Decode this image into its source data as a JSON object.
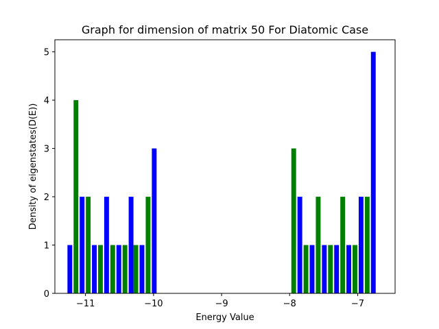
{
  "chart_data": {
    "type": "bar",
    "title": "Graph for dimension of matrix 50 For Diatomic Case",
    "xlabel": "Energy Value",
    "ylabel": "Density of eigenstates(D(E))",
    "xlim": [
      -11.45,
      -6.45
    ],
    "ylim": [
      0,
      5.25
    ],
    "xticks": [
      -11,
      -10,
      -9,
      -8,
      -7
    ],
    "xtick_labels": [
      "−11",
      "−10",
      "−9",
      "−8",
      "−7"
    ],
    "yticks": [
      0,
      1,
      2,
      3,
      4,
      5
    ],
    "ytick_labels": [
      "0",
      "1",
      "2",
      "3",
      "4",
      "5"
    ],
    "grid": false,
    "bar_width": 0.07,
    "colors": {
      "blue": "#0000ff",
      "green": "#008000"
    },
    "series": [
      {
        "color": "blue",
        "x": [
          -11.23,
          -11.05,
          -10.87,
          -10.69,
          -10.51,
          -10.33,
          -10.17,
          -9.99,
          -7.85,
          -7.67,
          -7.49,
          -7.31,
          -7.13,
          -6.95,
          -6.77
        ],
        "values": [
          1,
          2,
          1,
          2,
          1,
          2,
          1,
          3,
          2,
          1,
          1,
          1,
          1,
          2,
          5
        ]
      },
      {
        "color": "green",
        "x": [
          -11.14,
          -10.96,
          -10.78,
          -10.6,
          -10.42,
          -10.26,
          -10.08,
          -7.94,
          -7.76,
          -7.58,
          -7.4,
          -7.22,
          -7.04,
          -6.86
        ],
        "values": [
          4,
          2,
          1,
          1,
          1,
          1,
          2,
          3,
          1,
          2,
          1,
          2,
          1,
          2
        ]
      }
    ]
  }
}
